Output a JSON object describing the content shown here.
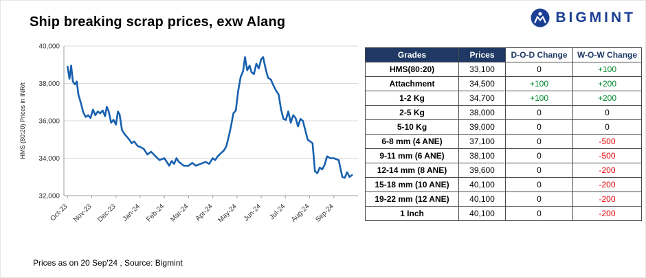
{
  "title": "Ship breaking scrap prices, exw Alang",
  "logo": {
    "text": "BIGMINT"
  },
  "footer": "Prices as on 20 Sep'24 , Source: Bigmint",
  "colors": {
    "line": "#1760ae",
    "header_bg": "#1f3864",
    "positive": "#00882b",
    "negative": "#e00000",
    "logo_blue": "#1b3f94"
  },
  "chart_data": {
    "type": "line",
    "title": "",
    "xlabel": "",
    "ylabel": "HMS (80:20) Prices in INR/t",
    "ylim": [
      32000,
      40000
    ],
    "yticks": [
      32000,
      34000,
      36000,
      38000,
      40000
    ],
    "xlim": [
      -0.15,
      12.0
    ],
    "grid": "horizontal",
    "legend": "none",
    "x_tick_labels": [
      "Oct-23",
      "Nov-23",
      "Dec-23",
      "Jan-24",
      "Feb-24",
      "Mar-24",
      "Apr-24",
      "May-24",
      "Jun-24",
      "Jul-24",
      "Aug-24",
      "Sep-24"
    ],
    "series": [
      {
        "name": "HMS (80:20)",
        "points": [
          [
            0.0,
            38900
          ],
          [
            0.08,
            38250
          ],
          [
            0.15,
            38950
          ],
          [
            0.22,
            38100
          ],
          [
            0.3,
            37950
          ],
          [
            0.38,
            38100
          ],
          [
            0.45,
            37400
          ],
          [
            0.55,
            36950
          ],
          [
            0.65,
            36450
          ],
          [
            0.75,
            36200
          ],
          [
            0.85,
            36300
          ],
          [
            0.95,
            36150
          ],
          [
            1.05,
            36600
          ],
          [
            1.15,
            36300
          ],
          [
            1.25,
            36500
          ],
          [
            1.35,
            36400
          ],
          [
            1.45,
            36550
          ],
          [
            1.55,
            36250
          ],
          [
            1.62,
            36750
          ],
          [
            1.7,
            36500
          ],
          [
            1.8,
            35900
          ],
          [
            1.9,
            36050
          ],
          [
            2.0,
            35800
          ],
          [
            2.08,
            36500
          ],
          [
            2.15,
            36350
          ],
          [
            2.25,
            35500
          ],
          [
            2.35,
            35300
          ],
          [
            2.45,
            35150
          ],
          [
            2.55,
            35000
          ],
          [
            2.65,
            34800
          ],
          [
            2.75,
            34900
          ],
          [
            2.9,
            34650
          ],
          [
            3.0,
            34600
          ],
          [
            3.15,
            34500
          ],
          [
            3.3,
            34200
          ],
          [
            3.45,
            34350
          ],
          [
            3.6,
            34150
          ],
          [
            3.8,
            33900
          ],
          [
            4.0,
            34000
          ],
          [
            4.1,
            33800
          ],
          [
            4.2,
            33600
          ],
          [
            4.3,
            33850
          ],
          [
            4.4,
            33700
          ],
          [
            4.5,
            34000
          ],
          [
            4.6,
            33800
          ],
          [
            4.8,
            33600
          ],
          [
            5.0,
            33600
          ],
          [
            5.15,
            33750
          ],
          [
            5.3,
            33600
          ],
          [
            5.5,
            33700
          ],
          [
            5.7,
            33800
          ],
          [
            5.85,
            33700
          ],
          [
            6.0,
            34000
          ],
          [
            6.1,
            33900
          ],
          [
            6.2,
            34100
          ],
          [
            6.32,
            34250
          ],
          [
            6.45,
            34400
          ],
          [
            6.55,
            34600
          ],
          [
            6.65,
            35100
          ],
          [
            6.75,
            35700
          ],
          [
            6.85,
            36400
          ],
          [
            6.95,
            36550
          ],
          [
            7.05,
            37600
          ],
          [
            7.15,
            38350
          ],
          [
            7.25,
            38650
          ],
          [
            7.33,
            39400
          ],
          [
            7.42,
            38700
          ],
          [
            7.52,
            38950
          ],
          [
            7.6,
            38600
          ],
          [
            7.7,
            38500
          ],
          [
            7.8,
            39050
          ],
          [
            7.9,
            38800
          ],
          [
            8.0,
            39300
          ],
          [
            8.08,
            39400
          ],
          [
            8.18,
            38800
          ],
          [
            8.28,
            38300
          ],
          [
            8.4,
            38200
          ],
          [
            8.5,
            37900
          ],
          [
            8.62,
            37600
          ],
          [
            8.72,
            37400
          ],
          [
            8.82,
            36600
          ],
          [
            8.92,
            36100
          ],
          [
            9.02,
            36050
          ],
          [
            9.12,
            36500
          ],
          [
            9.22,
            35900
          ],
          [
            9.32,
            36300
          ],
          [
            9.42,
            36150
          ],
          [
            9.52,
            35700
          ],
          [
            9.62,
            36100
          ],
          [
            9.72,
            36000
          ],
          [
            9.82,
            35500
          ],
          [
            9.92,
            35000
          ],
          [
            10.02,
            34900
          ],
          [
            10.12,
            34800
          ],
          [
            10.22,
            33300
          ],
          [
            10.32,
            33200
          ],
          [
            10.42,
            33500
          ],
          [
            10.52,
            33400
          ],
          [
            10.62,
            33650
          ],
          [
            10.72,
            34100
          ],
          [
            10.85,
            34000
          ],
          [
            11.0,
            34000
          ],
          [
            11.1,
            33950
          ],
          [
            11.2,
            33900
          ],
          [
            11.35,
            33000
          ],
          [
            11.45,
            32950
          ],
          [
            11.55,
            33250
          ],
          [
            11.65,
            33000
          ],
          [
            11.75,
            33100
          ]
        ]
      }
    ]
  },
  "table": {
    "headers": [
      "Grades",
      "Prices",
      "D-O-D Change",
      "W-O-W Change"
    ],
    "rows": [
      [
        "HMS(80:20)",
        "33,100",
        "0",
        "+100"
      ],
      [
        "Attachment",
        "34,500",
        "+100",
        "+200"
      ],
      [
        "1-2 Kg",
        "34,700",
        "+100",
        "+200"
      ],
      [
        "2-5 Kg",
        "38,000",
        "0",
        "0"
      ],
      [
        "5-10 Kg",
        "39,000",
        "0",
        "0"
      ],
      [
        "6-8 mm (4 ANE)",
        "37,100",
        "0",
        "-500"
      ],
      [
        "9-11 mm (6 ANE)",
        "38,100",
        "0",
        "-500"
      ],
      [
        "12-14 mm (8 ANE)",
        "39,600",
        "0",
        "-200"
      ],
      [
        "15-18 mm (10 ANE)",
        "40,100",
        "0",
        "-200"
      ],
      [
        "19-22 mm (12 ANE)",
        "40,100",
        "0",
        "-200"
      ],
      [
        "1 Inch",
        "40,100",
        "0",
        "-200"
      ]
    ]
  }
}
